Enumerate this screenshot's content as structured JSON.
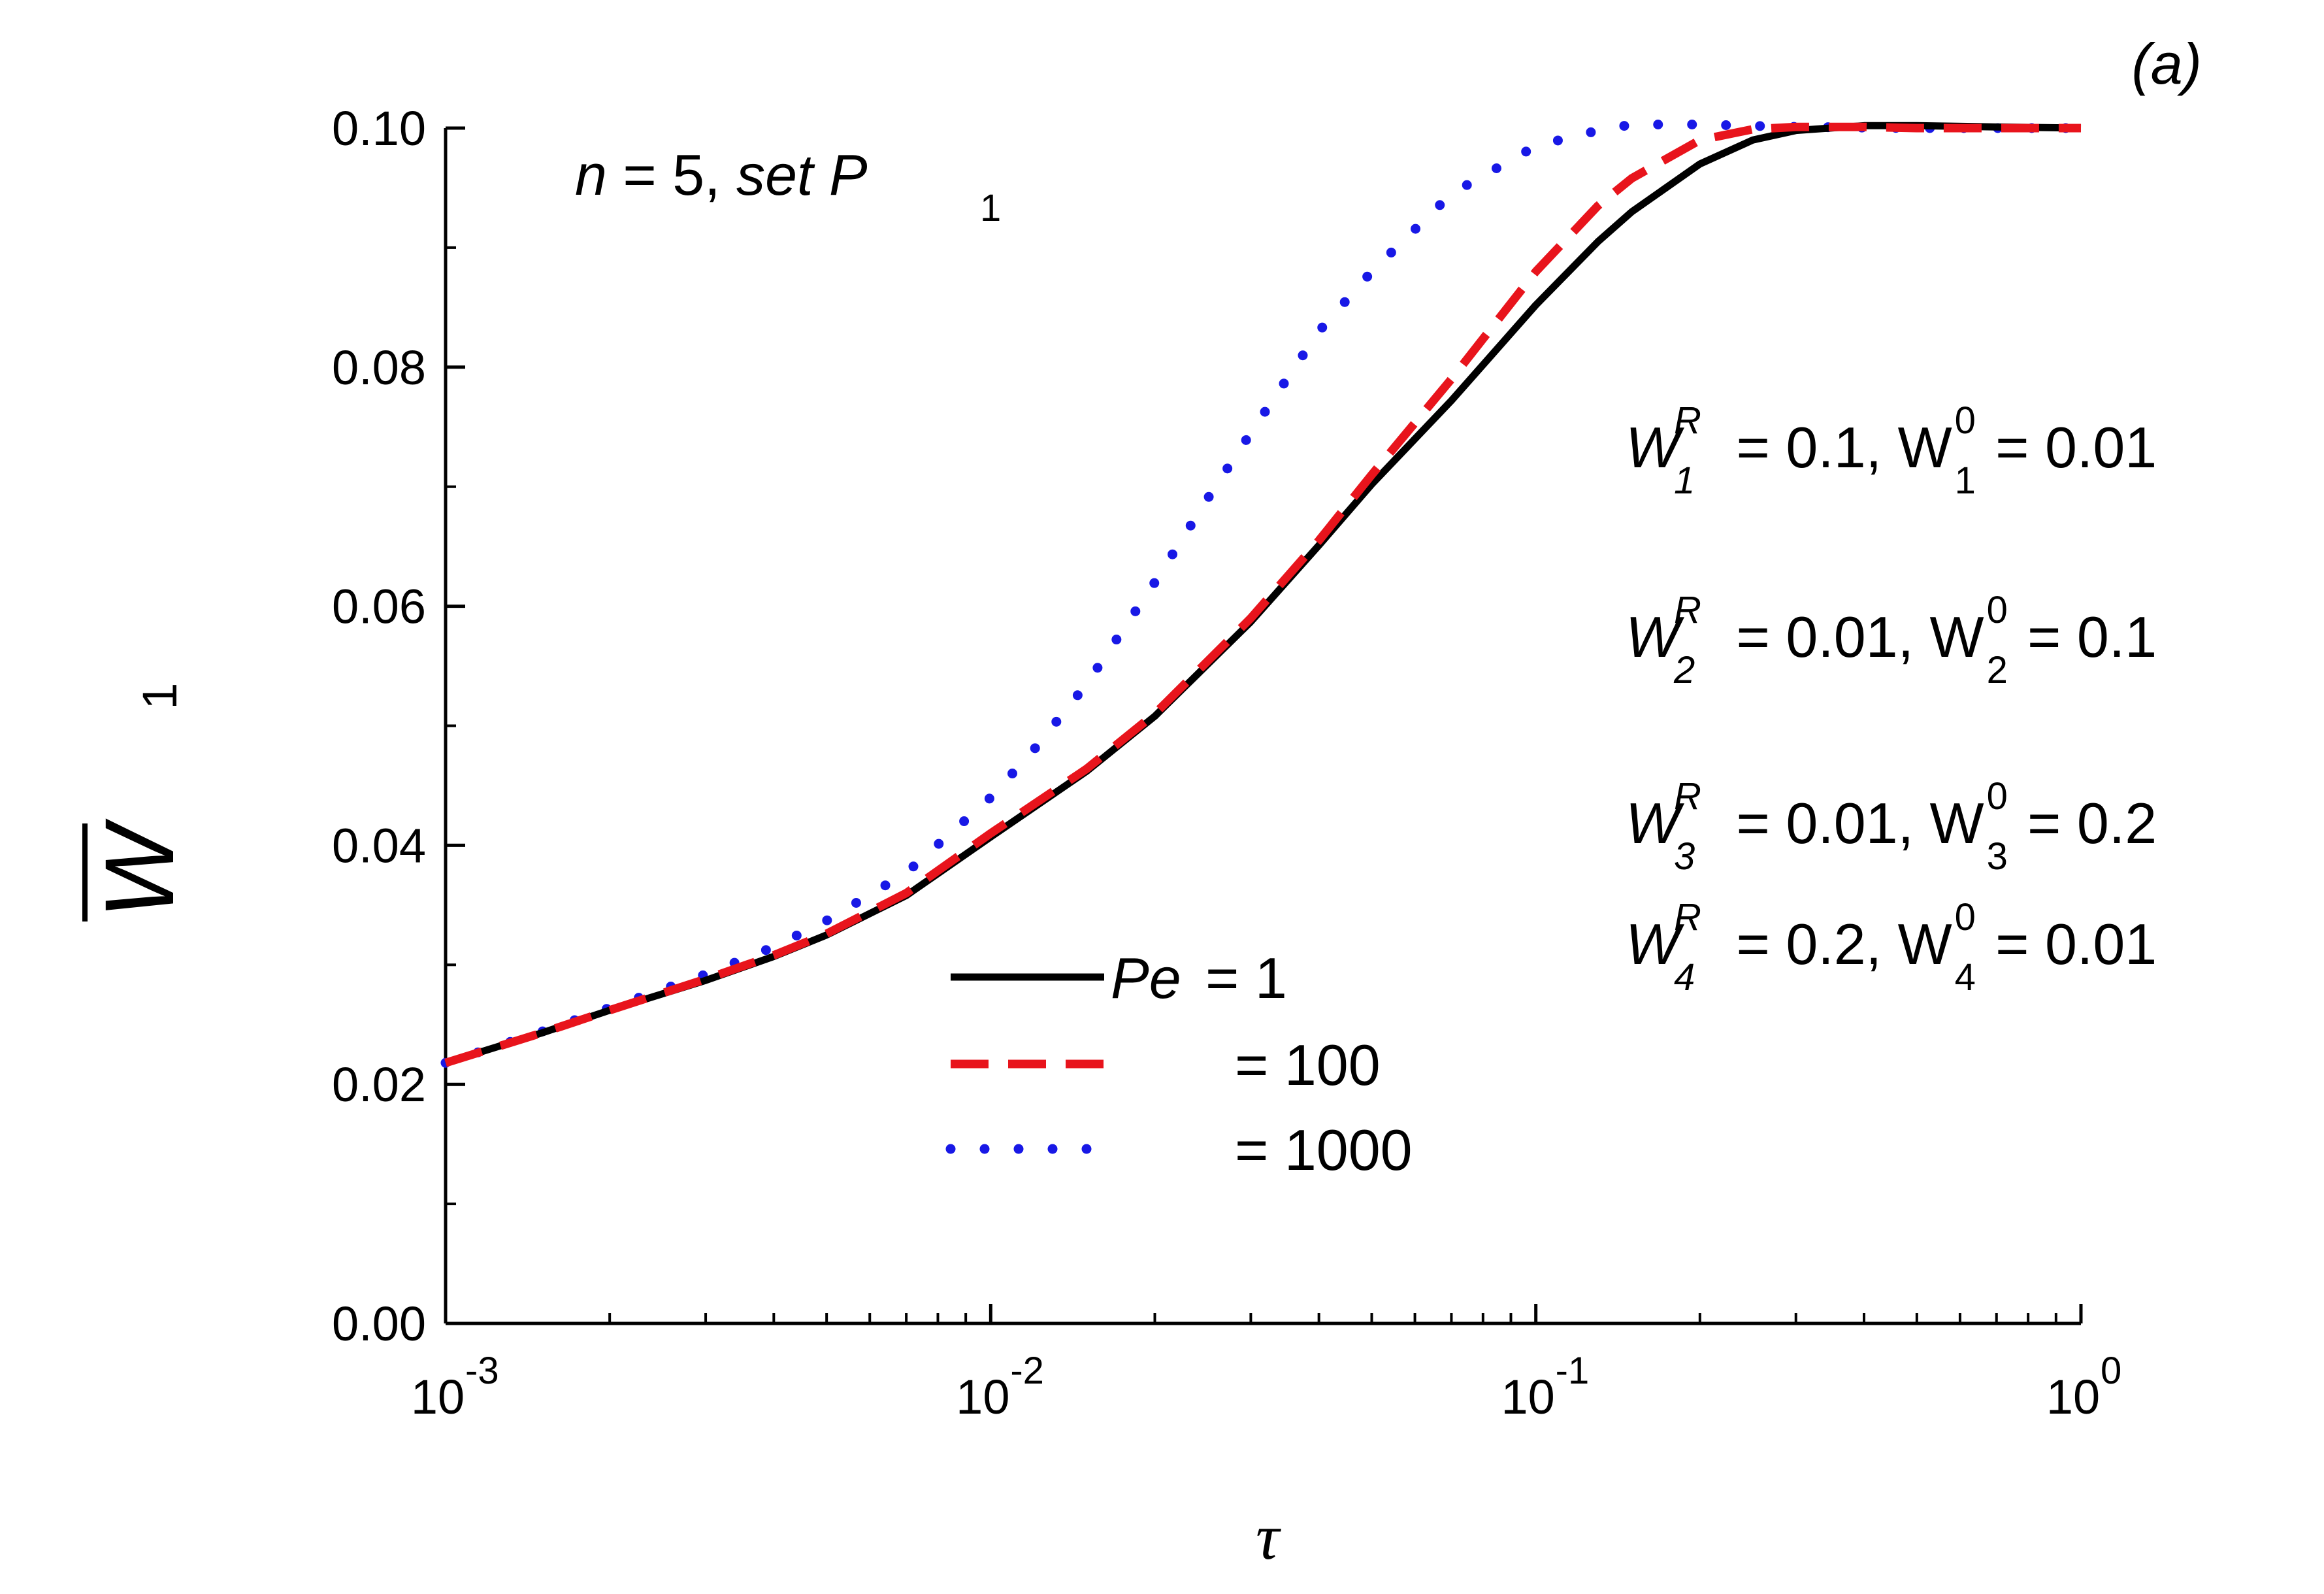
{
  "chart_data": {
    "type": "line",
    "panel_label": "(a)",
    "xlabel": "τ",
    "ylabel": "W",
    "ylabel_sub": "1",
    "x_scale": "log",
    "xlim": [
      0.001,
      1
    ],
    "ylim": [
      0,
      0.1
    ],
    "x_ticks": [
      {
        "value": 0.001,
        "base": "10",
        "exp": "-3"
      },
      {
        "value": 0.01,
        "base": "10",
        "exp": "-2"
      },
      {
        "value": 0.1,
        "base": "10",
        "exp": "-1"
      },
      {
        "value": 1,
        "base": "10",
        "exp": "0"
      }
    ],
    "y_ticks": [
      {
        "value": 0.0,
        "label": "0.00"
      },
      {
        "value": 0.02,
        "label": "0.02"
      },
      {
        "value": 0.04,
        "label": "0.04"
      },
      {
        "value": 0.06,
        "label": "0.06"
      },
      {
        "value": 0.08,
        "label": "0.08"
      },
      {
        "value": 0.1,
        "label": "0.10"
      }
    ],
    "condition": {
      "n_label": "n",
      "n_value": " = 5, ",
      "set_label": "set P",
      "set_sub": "1"
    },
    "params": [
      {
        "wr_sym": "W",
        "wr_sup": "R",
        "wr_sub": "1",
        "wr_val": " = 0.1, ",
        "w0_sym": "W",
        "w0_sup": "0",
        "w0_sub": "1",
        "w0_val": " = 0.01"
      },
      {
        "wr_sym": "W",
        "wr_sup": "R",
        "wr_sub": "2",
        "wr_val": " = 0.01, ",
        "w0_sym": "W",
        "w0_sup": "0",
        "w0_sub": "2",
        "w0_val": " = 0.1"
      },
      {
        "wr_sym": "W",
        "wr_sup": "R",
        "wr_sub": "3",
        "wr_val": " = 0.01, ",
        "w0_sym": "W",
        "w0_sup": "0",
        "w0_sub": "3",
        "w0_val": " = 0.2"
      },
      {
        "wr_sym": "W",
        "wr_sup": "R",
        "wr_sub": "4",
        "wr_val": " = 0.2, ",
        "w0_sym": "W",
        "w0_sup": "0",
        "w0_sub": "4",
        "w0_val": " = 0.01"
      }
    ],
    "legend": {
      "position": "center-bottom",
      "var_label": "Pe"
    },
    "series": [
      {
        "name": "Pe = 1",
        "legend_value": " = 1",
        "color": "#000000",
        "style": "solid",
        "x": [
          0.001,
          0.0015,
          0.002,
          0.003,
          0.004,
          0.005,
          0.007,
          0.01,
          0.015,
          0.02,
          0.03,
          0.04,
          0.05,
          0.07,
          0.1,
          0.13,
          0.15,
          0.2,
          0.25,
          0.3,
          0.4,
          0.5,
          0.7,
          1.0
        ],
        "y": [
          0.0218,
          0.0243,
          0.0262,
          0.0287,
          0.0307,
          0.0325,
          0.0358,
          0.0407,
          0.0462,
          0.0508,
          0.0587,
          0.0651,
          0.0702,
          0.0772,
          0.0852,
          0.0905,
          0.093,
          0.097,
          0.099,
          0.0998,
          0.1002,
          0.1002,
          0.1001,
          0.1
        ]
      },
      {
        "name": "Pe = 100",
        "legend_value": " = 100",
        "color": "#e8141c",
        "style": "dashed",
        "x": [
          0.001,
          0.0015,
          0.002,
          0.003,
          0.004,
          0.005,
          0.007,
          0.01,
          0.015,
          0.02,
          0.03,
          0.04,
          0.05,
          0.07,
          0.1,
          0.13,
          0.15,
          0.2,
          0.25,
          0.3,
          0.4,
          0.5,
          0.7,
          1.0
        ],
        "y": [
          0.0218,
          0.0243,
          0.0262,
          0.0288,
          0.0308,
          0.0326,
          0.036,
          0.041,
          0.0464,
          0.051,
          0.059,
          0.0655,
          0.071,
          0.079,
          0.088,
          0.0935,
          0.0958,
          0.099,
          0.0999,
          0.1001,
          0.1001,
          0.1,
          0.1,
          0.1
        ]
      },
      {
        "name": "Pe = 1000",
        "legend_value": " = 1000",
        "color": "#1818e6",
        "style": "dotted",
        "x": [
          0.001,
          0.0015,
          0.002,
          0.003,
          0.004,
          0.005,
          0.007,
          0.01,
          0.012,
          0.015,
          0.02,
          0.025,
          0.03,
          0.04,
          0.05,
          0.07,
          0.1,
          0.13,
          0.15,
          0.2,
          0.3,
          0.5,
          1.0
        ],
        "y": [
          0.0218,
          0.0244,
          0.0264,
          0.0292,
          0.0315,
          0.0337,
          0.0377,
          0.044,
          0.048,
          0.0535,
          0.062,
          0.069,
          0.0745,
          0.083,
          0.088,
          0.0945,
          0.0985,
          0.0998,
          0.1003,
          0.1003,
          0.1001,
          0.1,
          0.1
        ]
      }
    ]
  }
}
